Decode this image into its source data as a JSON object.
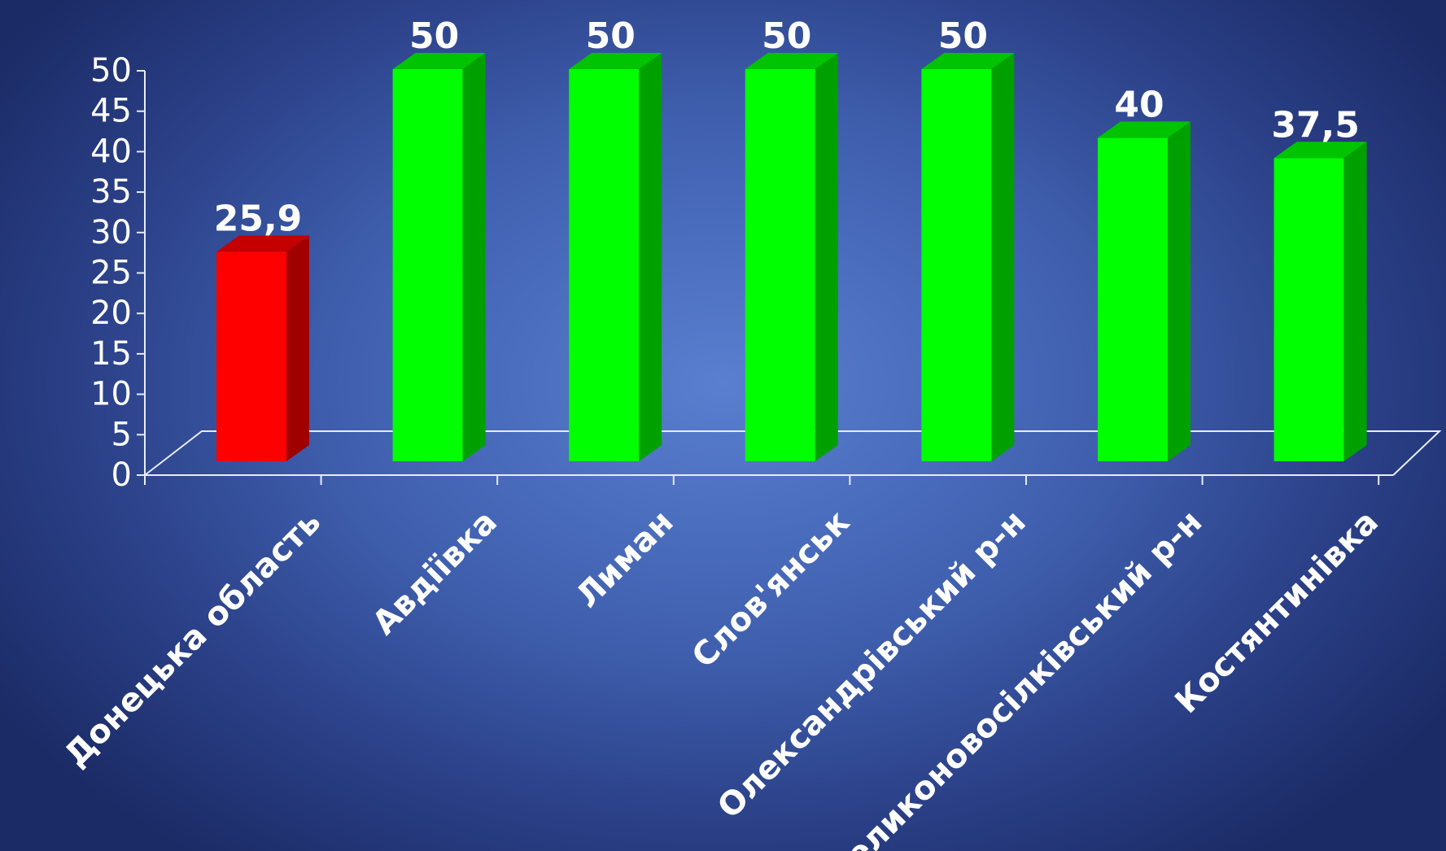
{
  "chart_data": {
    "type": "bar",
    "categories": [
      "Донецька область",
      "Авдіївка",
      "Лиман",
      "Слов'янськ",
      "Олександрівський р-н",
      "Великоновосілківський р-н",
      "Костянтинівка"
    ],
    "values": [
      25.9,
      50,
      50,
      50,
      50,
      40,
      37.5
    ],
    "value_labels": [
      "25,9",
      "50",
      "50",
      "50",
      "50",
      "40",
      "37,5"
    ],
    "ylim": [
      0,
      50
    ],
    "yticks": [
      "0",
      "5",
      "10",
      "15",
      "20",
      "25",
      "30",
      "35",
      "40",
      "45",
      "50"
    ],
    "grid": false,
    "legend": "none",
    "three_d": true,
    "colors": {
      "highlight_front": "#ff0000",
      "highlight_side": "#a00000",
      "highlight_top": "#c40000",
      "bar_front": "#00ff00",
      "bar_side": "#00a000",
      "bar_top": "#00c400",
      "axis": "#e8ecf8",
      "text": "#ffffff"
    },
    "highlight_index": 0
  }
}
